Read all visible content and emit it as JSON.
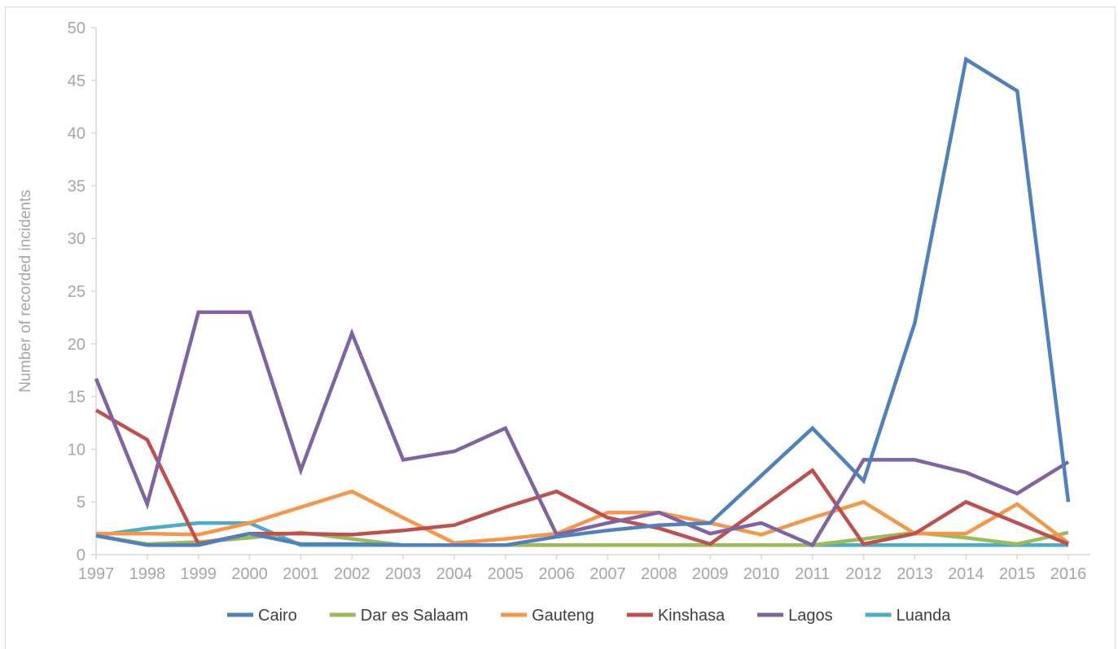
{
  "chart_data": {
    "type": "line",
    "ylabel": "Number of recorded incidents",
    "xlabel": "",
    "ylim": [
      0,
      50
    ],
    "yticks": [
      "0",
      "5",
      "10",
      "15",
      "20",
      "25",
      "30",
      "35",
      "40",
      "45",
      "50"
    ],
    "categories": [
      "1997",
      "1998",
      "1999",
      "2000",
      "2001",
      "2002",
      "2003",
      "2004",
      "2005",
      "2006",
      "2007",
      "2008",
      "2009",
      "2010",
      "2011",
      "2012",
      "2013",
      "2014",
      "2015",
      "2016"
    ],
    "legend_position": "bottom",
    "grid": false,
    "series": [
      {
        "name": "Cairo",
        "color": "#4f81bd",
        "values": [
          1.8,
          0.9,
          0.9,
          2,
          1,
          1,
          0.9,
          0.9,
          0.9,
          1.7,
          2.3,
          2.8,
          3,
          7.5,
          12,
          7,
          22,
          47,
          44,
          5
        ]
      },
      {
        "name": "Dar es Salaam",
        "color": "#9bbb59",
        "values": [
          1.8,
          1,
          1.2,
          1.6,
          2.1,
          1.5,
          0.9,
          0.9,
          0.9,
          0.9,
          0.9,
          0.9,
          0.9,
          0.9,
          0.9,
          1.5,
          2.1,
          1.6,
          1,
          2.1
        ]
      },
      {
        "name": "Gauteng",
        "color": "#f79646",
        "values": [
          2,
          2,
          1.9,
          3,
          4.5,
          6,
          3.5,
          1.1,
          1.5,
          2,
          4,
          4,
          3,
          1.9,
          3.5,
          5,
          2,
          2,
          4.8,
          1.1
        ]
      },
      {
        "name": "Kinshasa",
        "color": "#c0504d",
        "values": [
          13.7,
          10.9,
          1,
          2,
          2,
          1.9,
          2.3,
          2.8,
          4.5,
          6,
          3.5,
          2.5,
          1,
          4.5,
          8,
          1,
          2,
          5,
          3,
          1
        ]
      },
      {
        "name": "Lagos",
        "color": "#8064a2",
        "values": [
          16.7,
          4.8,
          23,
          23,
          8,
          21,
          9,
          9.8,
          12,
          1.9,
          3,
          4,
          2,
          3,
          0.9,
          9,
          9,
          7.8,
          5.8,
          8.8
        ]
      },
      {
        "name": "Luanda",
        "color": "#4bacc6",
        "values": [
          1.8,
          2.5,
          3,
          3,
          0.9,
          0.9,
          0.9,
          0.9,
          0.9,
          0.9,
          0.9,
          0.9,
          0.9,
          0.9,
          0.9,
          0.9,
          0.9,
          0.9,
          0.9,
          0.9
        ]
      }
    ]
  }
}
